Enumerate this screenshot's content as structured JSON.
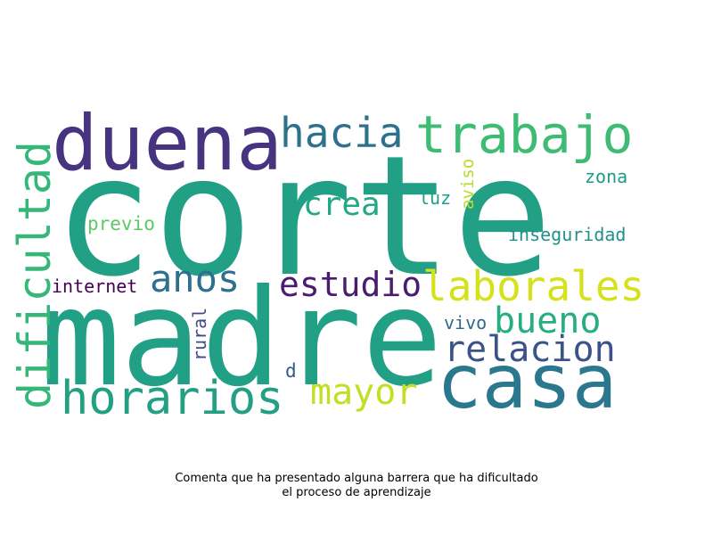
{
  "caption": {
    "line1": "Comenta que ha presentado alguna barrera que ha dificultado",
    "line2": "el proceso de aprendizaje"
  },
  "words": [
    {
      "text": "corte",
      "color": "#21a086"
    },
    {
      "text": "madre",
      "color": "#21a086"
    },
    {
      "text": "duena",
      "color": "#463480"
    },
    {
      "text": "casa",
      "color": "#2b788e"
    },
    {
      "text": "trabajo",
      "color": "#3fbc73"
    },
    {
      "text": "hacia",
      "color": "#2c728e"
    },
    {
      "text": "dificultad",
      "color": "#35b779"
    },
    {
      "text": "horarios",
      "color": "#23a083"
    },
    {
      "text": "laborales",
      "color": "#d5e21a"
    },
    {
      "text": "relacion",
      "color": "#3b528b"
    },
    {
      "text": "mayor",
      "color": "#c2df23"
    },
    {
      "text": "anos",
      "color": "#2d708e"
    },
    {
      "text": "estudio",
      "color": "#481c6e"
    },
    {
      "text": "bueno",
      "color": "#26ad81"
    },
    {
      "text": "crea",
      "color": "#22a884"
    },
    {
      "text": "inseguridad",
      "color": "#21918c"
    },
    {
      "text": "internet",
      "color": "#440154"
    },
    {
      "text": "previo",
      "color": "#5ec962"
    },
    {
      "text": "luz",
      "color": "#1f9e89"
    },
    {
      "text": "aviso",
      "color": "#b5de2b"
    },
    {
      "text": "zona",
      "color": "#1f9a8a"
    },
    {
      "text": "vivo",
      "color": "#31688e"
    },
    {
      "text": "rural",
      "color": "#3e4c8a"
    },
    {
      "text": "d",
      "color": "#38588c"
    }
  ]
}
